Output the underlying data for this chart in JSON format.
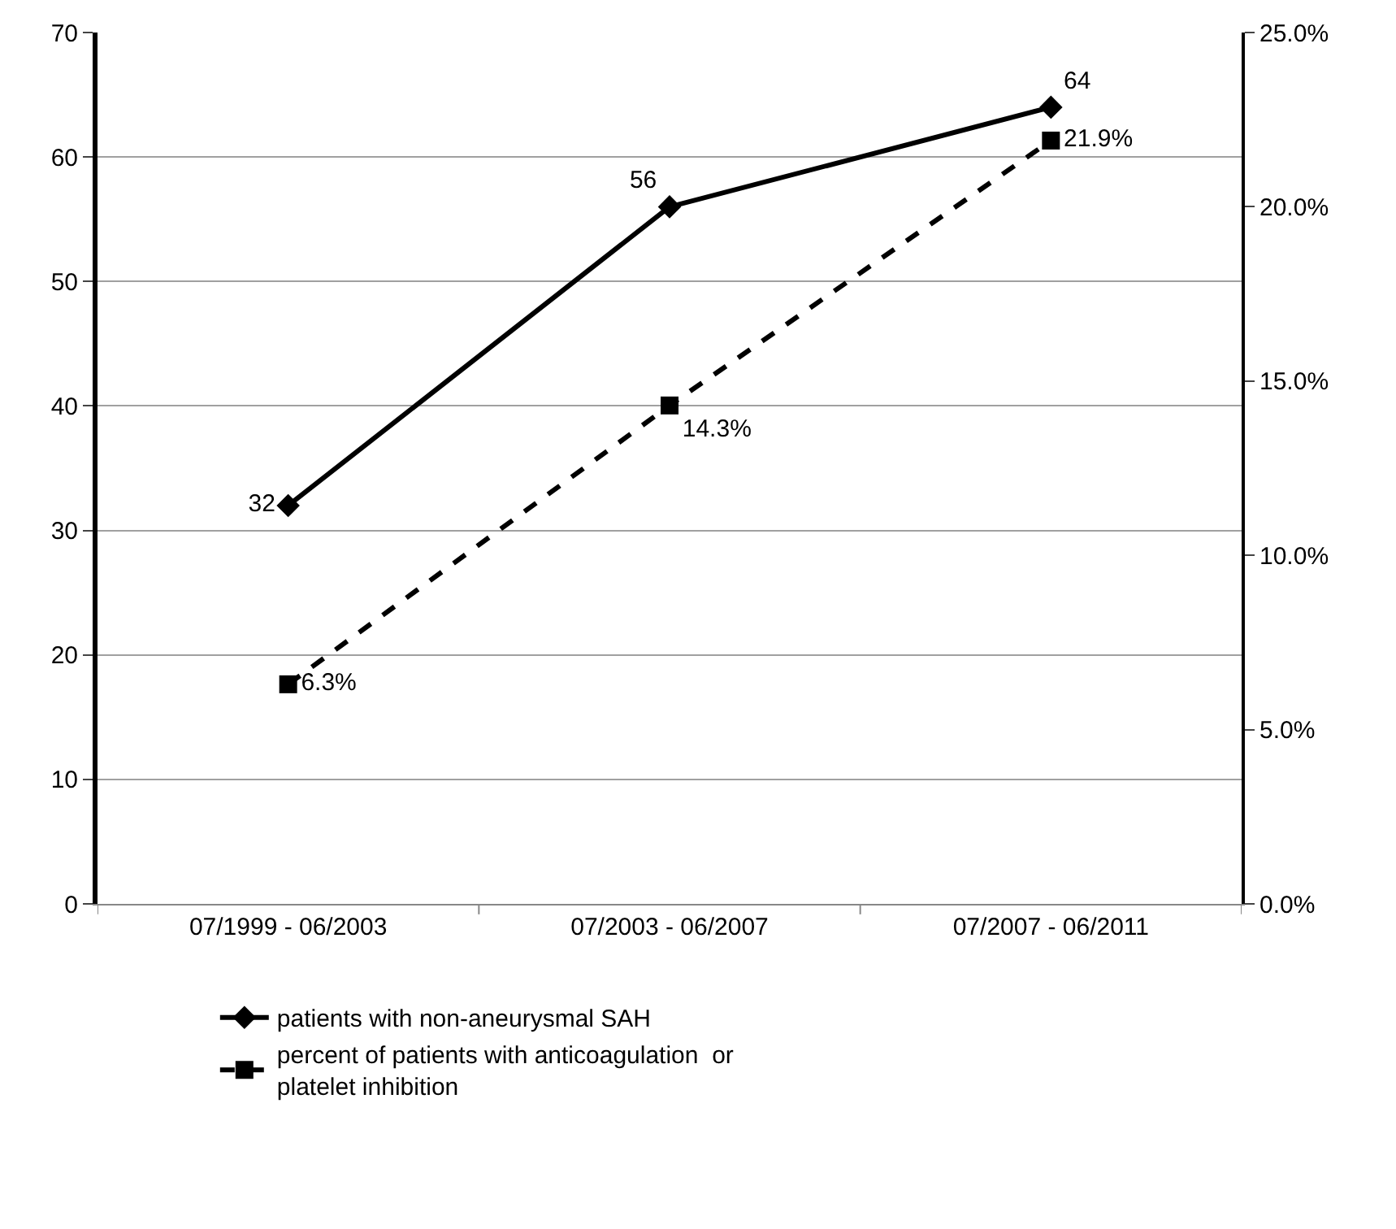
{
  "chart_data": {
    "type": "line",
    "categories": [
      "07/1999 - 06/2003",
      "07/2003 - 06/2007",
      "07/2007 - 06/2011"
    ],
    "series": [
      {
        "name": "patients with non-aneurysmal SAH",
        "color": "#000000",
        "values": [
          32,
          56,
          64
        ],
        "value_labels": [
          "32",
          "56",
          "64"
        ],
        "marker": "diamond",
        "line_style": "solid"
      },
      {
        "name": "percent of patients with anticoagulation  or platelet inhibition",
        "color": "#000000",
        "values": [
          6.3,
          14.3,
          21.9
        ],
        "value_labels": [
          "6.3%",
          "14.3%",
          "21.9%"
        ],
        "marker": "square",
        "line_style": "dashed",
        "axis": "y2"
      }
    ],
    "ylim": [
      0,
      70
    ],
    "yticks": [
      0,
      10,
      20,
      30,
      40,
      50,
      60,
      70
    ],
    "y2lim": [
      0,
      25
    ],
    "y2ticks": [
      {
        "value": 0,
        "label": "0.0%"
      },
      {
        "value": 5,
        "label": "5.0%"
      },
      {
        "value": 10,
        "label": "10.0%"
      },
      {
        "value": 15,
        "label": "15.0%"
      },
      {
        "value": 20,
        "label": "20.0%"
      },
      {
        "value": 25,
        "label": "25.0%"
      }
    ],
    "grid": "y",
    "legend": "bottom"
  }
}
